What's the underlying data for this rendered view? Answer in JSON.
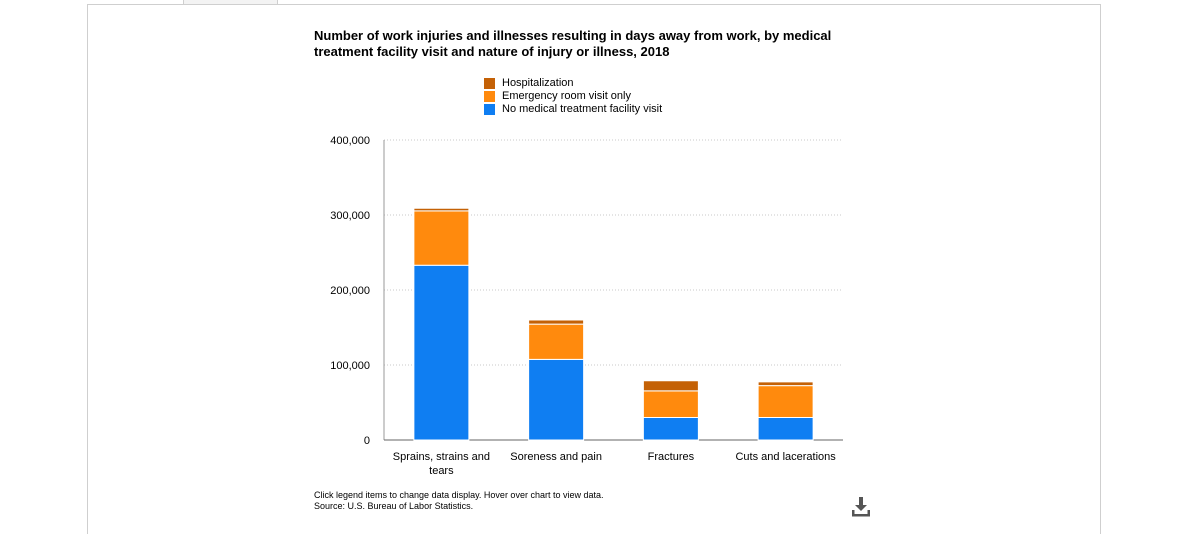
{
  "chart_data": {
    "type": "bar",
    "stacked": true,
    "title": "Number of work injuries and illnesses resulting in days away from work, by medical treatment facility visit and nature of injury or illness, 2018",
    "xlabel": "",
    "ylabel": "",
    "categories": [
      "Sprains, strains and tears",
      "Soreness and pain",
      "Fractures",
      "Cuts and lacerations"
    ],
    "series": [
      {
        "name": "No medical treatment facility visit",
        "color": "#0f7ef2",
        "values": [
          233000,
          107500,
          30000,
          30000
        ]
      },
      {
        "name": "Emergency room visit only",
        "color": "#ff8a0d",
        "values": [
          72500,
          47000,
          35500,
          42500
        ]
      },
      {
        "name": "Hospitalization",
        "color": "#c46106",
        "values": [
          3500,
          5500,
          13500,
          5000
        ]
      }
    ],
    "ylim": [
      0,
      400000
    ],
    "yticks": [
      0,
      100000,
      200000,
      300000,
      400000
    ],
    "ytick_labels": [
      "0",
      "100,000",
      "200,000",
      "300,000",
      "400,000"
    ],
    "grid": true,
    "legend_position": "top-center"
  },
  "notes": {
    "line1": "Click legend items to change data display. Hover over chart to view data.",
    "line2": "Source: U.S. Bureau of Labor Statistics."
  },
  "download_icon": "download-icon"
}
